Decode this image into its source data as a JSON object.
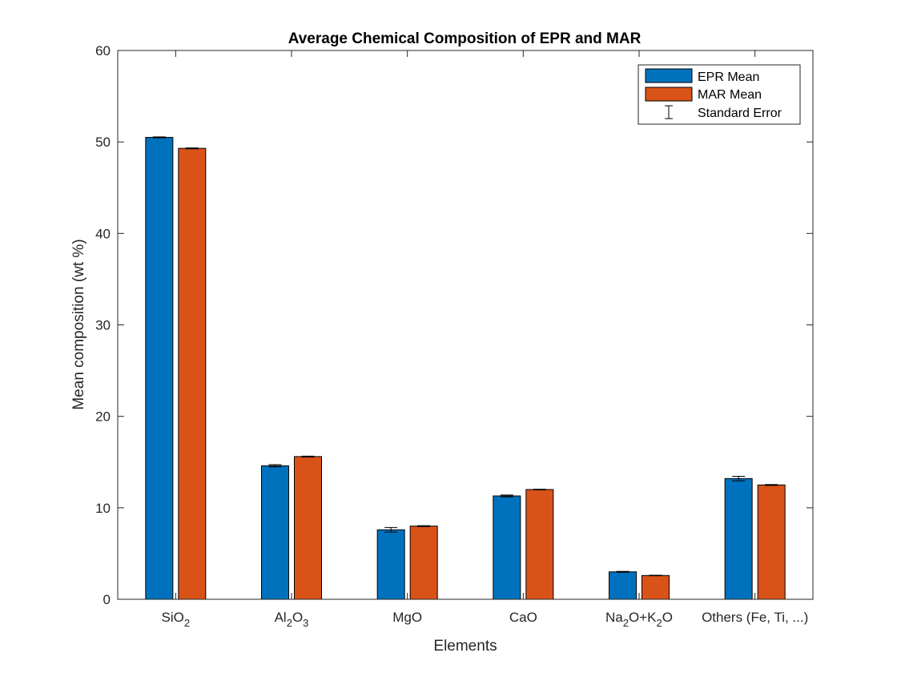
{
  "chart_data": {
    "type": "bar",
    "title": "Average Chemical Composition of EPR and MAR",
    "xlabel": "Elements",
    "ylabel": "Mean composition (wt %)",
    "ylim": [
      0,
      60
    ],
    "yticks": [
      0,
      10,
      20,
      30,
      40,
      50,
      60
    ],
    "grid": false,
    "legend_position": "top-right",
    "categories": [
      {
        "base": "SiO",
        "parts": [
          [
            "SiO",
            false
          ],
          [
            "2",
            true
          ]
        ]
      },
      {
        "base": "Al2O3",
        "parts": [
          [
            "Al",
            false
          ],
          [
            "2",
            true
          ],
          [
            "O",
            false
          ],
          [
            "3",
            true
          ]
        ]
      },
      {
        "base": "MgO",
        "parts": [
          [
            "MgO",
            false
          ]
        ]
      },
      {
        "base": "CaO",
        "parts": [
          [
            "CaO",
            false
          ]
        ]
      },
      {
        "base": "Na2O+K2O",
        "parts": [
          [
            "Na",
            false
          ],
          [
            "2",
            true
          ],
          [
            "O+K",
            false
          ],
          [
            "2",
            true
          ],
          [
            "O",
            false
          ]
        ]
      },
      {
        "base": "Others",
        "parts": [
          [
            "Others (Fe, Ti, ...)",
            false
          ]
        ]
      }
    ],
    "category_labels": [
      "SiO2",
      "Al2O3",
      "MgO",
      "CaO",
      "Na2O+K2O",
      "Others (Fe, Ti, ...)"
    ],
    "series": [
      {
        "name": "EPR Mean",
        "color": "#0072BD",
        "values": [
          50.5,
          14.6,
          7.6,
          11.3,
          3.0,
          13.2
        ],
        "errors": [
          0.05,
          0.12,
          0.25,
          0.1,
          0.05,
          0.25
        ]
      },
      {
        "name": "MAR Mean",
        "color": "#D95319",
        "values": [
          49.3,
          15.6,
          8.0,
          12.0,
          2.6,
          12.5
        ],
        "errors": [
          0.05,
          0.05,
          0.05,
          0.03,
          0.03,
          0.05
        ]
      }
    ],
    "legend_items": [
      "EPR Mean",
      "MAR Mean",
      "Standard Error"
    ]
  }
}
